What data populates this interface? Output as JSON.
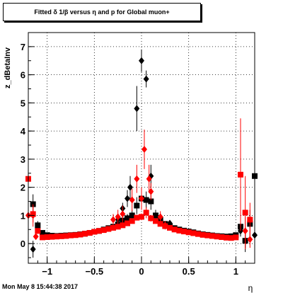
{
  "chart_data": {
    "type": "scatter",
    "title": "Fitted δ 1/β versus η and p for Global muon+",
    "ylabel": "z_dBetaInv",
    "xlabel": "η",
    "xlim": [
      -1.2,
      1.2
    ],
    "ylim": [
      -0.7,
      7.5
    ],
    "xticks": [
      -1,
      -0.5,
      0,
      0.5,
      1
    ],
    "xtick_labels": [
      "−1",
      "−0.5",
      "0",
      "0.5",
      "1"
    ],
    "yticks": [
      0,
      1,
      2,
      3,
      4,
      5,
      6,
      7
    ],
    "ytick_labels": [
      "0",
      "1",
      "2",
      "3",
      "4",
      "5",
      "6",
      "7"
    ],
    "grid": true,
    "footer": "Mon May  8 15:44:38 2017",
    "series": [
      {
        "marker": "square",
        "color": "#000000",
        "points": [
          [
            -1.15,
            1.4,
            0.35
          ],
          [
            -1.1,
            0.65,
            0.15
          ],
          [
            -1.05,
            0.38,
            0.05
          ],
          [
            -1.0,
            0.3,
            0.03
          ],
          [
            -0.95,
            0.28,
            0.02
          ],
          [
            -0.9,
            0.27,
            0.02
          ],
          [
            -0.85,
            0.28,
            0.02
          ],
          [
            -0.8,
            0.29,
            0.02
          ],
          [
            -0.75,
            0.3,
            0.02
          ],
          [
            -0.7,
            0.31,
            0.02
          ],
          [
            -0.65,
            0.33,
            0.02
          ],
          [
            -0.6,
            0.35,
            0.02
          ],
          [
            -0.55,
            0.38,
            0.03
          ],
          [
            -0.5,
            0.42,
            0.03
          ],
          [
            -0.45,
            0.45,
            0.03
          ],
          [
            -0.4,
            0.5,
            0.04
          ],
          [
            -0.35,
            0.55,
            0.05
          ],
          [
            -0.3,
            0.6,
            0.06
          ],
          [
            -0.25,
            0.68,
            0.08
          ],
          [
            -0.2,
            0.82,
            0.1
          ],
          [
            -0.15,
            0.9,
            0.15
          ],
          [
            -0.1,
            1.0,
            0.2
          ],
          [
            -0.05,
            1.35,
            0.3
          ],
          [
            0.0,
            1.6,
            0.35
          ],
          [
            0.05,
            1.55,
            0.3
          ],
          [
            0.1,
            1.5,
            0.3
          ],
          [
            0.15,
            1.0,
            0.2
          ],
          [
            0.2,
            0.85,
            0.15
          ],
          [
            0.25,
            0.7,
            0.1
          ],
          [
            0.3,
            0.62,
            0.08
          ],
          [
            0.35,
            0.55,
            0.06
          ],
          [
            0.4,
            0.5,
            0.05
          ],
          [
            0.45,
            0.46,
            0.04
          ],
          [
            0.5,
            0.43,
            0.03
          ],
          [
            0.55,
            0.4,
            0.03
          ],
          [
            0.6,
            0.36,
            0.02
          ],
          [
            0.65,
            0.33,
            0.02
          ],
          [
            0.7,
            0.31,
            0.02
          ],
          [
            0.75,
            0.29,
            0.02
          ],
          [
            0.8,
            0.27,
            0.02
          ],
          [
            0.85,
            0.26,
            0.02
          ],
          [
            0.9,
            0.25,
            0.02
          ],
          [
            0.95,
            0.26,
            0.03
          ],
          [
            1.0,
            0.3,
            0.05
          ],
          [
            1.05,
            0.6,
            0.15
          ],
          [
            1.1,
            0.1,
            0.4
          ],
          [
            1.15,
            0.7,
            0.5
          ],
          [
            1.2,
            2.4,
            1.0
          ]
        ]
      },
      {
        "marker": "diamond",
        "color": "#000000",
        "points": [
          [
            -1.15,
            -0.2,
            0.3
          ],
          [
            -1.1,
            0.55,
            0.2
          ],
          [
            -0.25,
            0.85,
            0.15
          ],
          [
            -0.2,
            1.25,
            0.2
          ],
          [
            -0.15,
            1.6,
            0.3
          ],
          [
            -0.12,
            2.0,
            0.4
          ],
          [
            -0.05,
            4.8,
            0.8
          ],
          [
            0.0,
            6.5,
            0.4
          ],
          [
            0.05,
            5.85,
            0.3
          ],
          [
            0.1,
            2.4,
            0.4
          ],
          [
            0.2,
            0.85,
            0.15
          ],
          [
            0.3,
            0.72,
            0.08
          ],
          [
            1.05,
            0.45,
            0.2
          ],
          [
            1.1,
            0.1,
            0.25
          ],
          [
            1.2,
            0.3,
            0.2
          ]
        ]
      },
      {
        "marker": "square",
        "color": "#ff0000",
        "points": [
          [
            -1.2,
            2.3,
            1.6
          ],
          [
            -1.15,
            1.05,
            0.3
          ],
          [
            -1.1,
            0.45,
            0.1
          ],
          [
            -1.05,
            0.22,
            0.03
          ],
          [
            -1.0,
            0.23,
            0.02
          ],
          [
            -0.95,
            0.24,
            0.02
          ],
          [
            -0.9,
            0.25,
            0.02
          ],
          [
            -0.85,
            0.26,
            0.02
          ],
          [
            -0.8,
            0.27,
            0.02
          ],
          [
            -0.75,
            0.29,
            0.02
          ],
          [
            -0.7,
            0.3,
            0.02
          ],
          [
            -0.65,
            0.32,
            0.02
          ],
          [
            -0.6,
            0.35,
            0.02
          ],
          [
            -0.55,
            0.38,
            0.03
          ],
          [
            -0.5,
            0.42,
            0.03
          ],
          [
            -0.45,
            0.45,
            0.03
          ],
          [
            -0.4,
            0.48,
            0.04
          ],
          [
            -0.35,
            0.52,
            0.04
          ],
          [
            -0.3,
            0.56,
            0.05
          ],
          [
            -0.25,
            0.6,
            0.05
          ],
          [
            -0.2,
            0.65,
            0.06
          ],
          [
            -0.15,
            0.72,
            0.07
          ],
          [
            -0.1,
            0.8,
            0.08
          ],
          [
            -0.05,
            0.92,
            0.1
          ],
          [
            0.0,
            0.95,
            0.12
          ],
          [
            0.05,
            1.1,
            0.2
          ],
          [
            0.1,
            0.9,
            0.12
          ],
          [
            0.15,
            0.8,
            0.08
          ],
          [
            0.2,
            0.7,
            0.06
          ],
          [
            0.25,
            0.62,
            0.05
          ],
          [
            0.3,
            0.56,
            0.04
          ],
          [
            0.35,
            0.5,
            0.04
          ],
          [
            0.4,
            0.46,
            0.03
          ],
          [
            0.45,
            0.43,
            0.03
          ],
          [
            0.5,
            0.4,
            0.03
          ],
          [
            0.55,
            0.37,
            0.02
          ],
          [
            0.6,
            0.34,
            0.02
          ],
          [
            0.65,
            0.31,
            0.02
          ],
          [
            0.7,
            0.29,
            0.02
          ],
          [
            0.75,
            0.27,
            0.02
          ],
          [
            0.8,
            0.25,
            0.02
          ],
          [
            0.85,
            0.23,
            0.02
          ],
          [
            0.9,
            0.21,
            0.02
          ],
          [
            0.95,
            0.2,
            0.03
          ],
          [
            1.0,
            0.22,
            0.05
          ],
          [
            1.05,
            2.45,
            2.0
          ],
          [
            1.1,
            1.1,
            1.3
          ],
          [
            1.15,
            0.85,
            0.6
          ]
        ]
      },
      {
        "marker": "diamond",
        "color": "#ff0000",
        "points": [
          [
            -1.2,
            1.0,
            0.7
          ],
          [
            -1.15,
            1.0,
            0.4
          ],
          [
            -1.12,
            0.25,
            0.1
          ],
          [
            -0.3,
            0.85,
            0.2
          ],
          [
            -0.25,
            0.95,
            0.25
          ],
          [
            -0.2,
            1.05,
            0.3
          ],
          [
            -0.1,
            1.55,
            0.4
          ],
          [
            -0.05,
            2.3,
            0.5
          ],
          [
            0.0,
            1.6,
            0.4
          ],
          [
            0.03,
            3.35,
            0.7
          ],
          [
            0.08,
            2.3,
            0.5
          ],
          [
            0.1,
            1.85,
            0.3
          ],
          [
            0.2,
            0.95,
            0.2
          ],
          [
            0.25,
            0.65,
            0.15
          ],
          [
            1.1,
            0.45,
            0.5
          ],
          [
            1.15,
            0.15,
            0.3
          ]
        ]
      }
    ]
  }
}
